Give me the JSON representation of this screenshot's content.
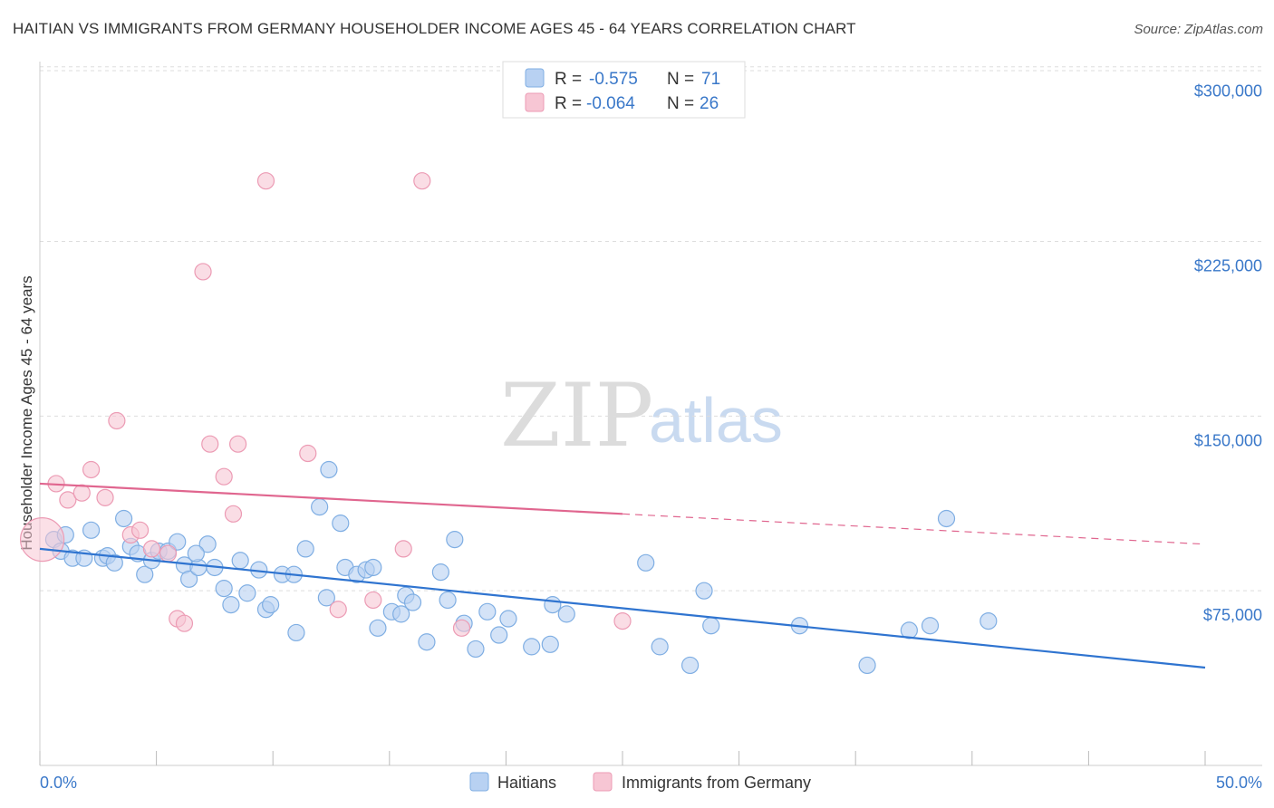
{
  "title": "HAITIAN VS IMMIGRANTS FROM GERMANY HOUSEHOLDER INCOME AGES 45 - 64 YEARS CORRELATION CHART",
  "source": "Source: ZipAtlas.com",
  "watermark": {
    "zip": "ZIP",
    "atlas": "atlas"
  },
  "colors": {
    "blue_fill": "#b8d1f2",
    "blue_stroke": "#7faee3",
    "blue_line": "#2f74d0",
    "pink_fill": "#f7c6d4",
    "pink_stroke": "#ec9bb4",
    "pink_line": "#e0668f",
    "grid": "#dddddd",
    "tick_label": "#3a78c9"
  },
  "legend": {
    "rows": [
      {
        "r_label": "R =",
        "r_value": "-0.575",
        "n_label": "N =",
        "n_value": "71"
      },
      {
        "r_label": "R =",
        "r_value": "-0.064",
        "n_label": "N =",
        "n_value": "26"
      }
    ]
  },
  "chart_data": {
    "type": "scatter",
    "title": "HAITIAN VS IMMIGRANTS FROM GERMANY HOUSEHOLDER INCOME AGES 45 - 64 YEARS CORRELATION CHART",
    "xlabel": "",
    "ylabel": "Householder Income Ages 45 - 64 years",
    "xlim": [
      0,
      50
    ],
    "ylim": [
      0,
      310000
    ],
    "x_tick_labels": [
      "0.0%",
      "50.0%"
    ],
    "y_ticks": [
      75000,
      150000,
      225000,
      300000
    ],
    "y_tick_labels": [
      "$75,000",
      "$150,000",
      "$225,000",
      "$300,000"
    ],
    "grid": true,
    "legend_position": "top-center",
    "series": [
      {
        "name": "Haitians",
        "color": "#7faee3",
        "trend": {
          "x": [
            0,
            50
          ],
          "y": [
            93000,
            42000
          ]
        },
        "points": [
          [
            0.6,
            97000
          ],
          [
            0.9,
            92000
          ],
          [
            1.1,
            99000
          ],
          [
            1.4,
            89000
          ],
          [
            1.9,
            89000
          ],
          [
            2.2,
            101000
          ],
          [
            2.7,
            89000
          ],
          [
            2.9,
            90000
          ],
          [
            3.2,
            87000
          ],
          [
            3.6,
            106000
          ],
          [
            3.9,
            94000
          ],
          [
            4.2,
            91000
          ],
          [
            4.5,
            82000
          ],
          [
            4.8,
            88000
          ],
          [
            5.1,
            92000
          ],
          [
            5.5,
            92000
          ],
          [
            5.9,
            96000
          ],
          [
            6.2,
            86000
          ],
          [
            6.4,
            80000
          ],
          [
            6.8,
            85000
          ],
          [
            7.2,
            95000
          ],
          [
            7.5,
            85000
          ],
          [
            7.9,
            76000
          ],
          [
            8.2,
            69000
          ],
          [
            8.6,
            88000
          ],
          [
            8.9,
            74000
          ],
          [
            9.4,
            84000
          ],
          [
            9.7,
            67000
          ],
          [
            9.9,
            69000
          ],
          [
            10.4,
            82000
          ],
          [
            10.9,
            82000
          ],
          [
            11.0,
            57000
          ],
          [
            11.4,
            93000
          ],
          [
            12.0,
            111000
          ],
          [
            12.3,
            72000
          ],
          [
            12.9,
            104000
          ],
          [
            12.4,
            127000
          ],
          [
            13.1,
            85000
          ],
          [
            13.6,
            82000
          ],
          [
            14.0,
            84000
          ],
          [
            14.3,
            85000
          ],
          [
            14.5,
            59000
          ],
          [
            15.1,
            66000
          ],
          [
            15.5,
            65000
          ],
          [
            15.7,
            73000
          ],
          [
            16.0,
            70000
          ],
          [
            16.6,
            53000
          ],
          [
            17.2,
            83000
          ],
          [
            17.5,
            71000
          ],
          [
            17.8,
            97000
          ],
          [
            18.2,
            61000
          ],
          [
            18.7,
            50000
          ],
          [
            19.2,
            66000
          ],
          [
            19.7,
            56000
          ],
          [
            20.1,
            63000
          ],
          [
            21.1,
            51000
          ],
          [
            21.9,
            52000
          ],
          [
            22.0,
            69000
          ],
          [
            22.6,
            65000
          ],
          [
            26.0,
            87000
          ],
          [
            26.6,
            51000
          ],
          [
            27.9,
            43000
          ],
          [
            28.5,
            75000
          ],
          [
            28.8,
            60000
          ],
          [
            32.6,
            60000
          ],
          [
            35.5,
            43000
          ],
          [
            37.3,
            58000
          ],
          [
            38.2,
            60000
          ],
          [
            38.9,
            106000
          ],
          [
            40.7,
            62000
          ],
          [
            6.7,
            91000
          ]
        ]
      },
      {
        "name": "Immigrants from Germany",
        "color": "#ec9bb4",
        "trend": {
          "x": [
            0,
            25
          ],
          "y": [
            121000,
            108000
          ],
          "dashed_extension": {
            "x": [
              25,
              50
            ],
            "y": [
              108000,
              95000
            ]
          }
        },
        "points": [
          [
            0.1,
            97000
          ],
          [
            0.7,
            121000
          ],
          [
            1.2,
            114000
          ],
          [
            1.8,
            117000
          ],
          [
            2.2,
            127000
          ],
          [
            2.8,
            115000
          ],
          [
            3.3,
            148000
          ],
          [
            3.9,
            99000
          ],
          [
            4.3,
            101000
          ],
          [
            4.8,
            93000
          ],
          [
            5.5,
            91000
          ],
          [
            5.9,
            63000
          ],
          [
            6.2,
            61000
          ],
          [
            7.0,
            212000
          ],
          [
            7.3,
            138000
          ],
          [
            7.9,
            124000
          ],
          [
            8.3,
            108000
          ],
          [
            8.5,
            138000
          ],
          [
            9.7,
            251000
          ],
          [
            11.5,
            134000
          ],
          [
            12.8,
            67000
          ],
          [
            14.3,
            71000
          ],
          [
            15.6,
            93000
          ],
          [
            16.4,
            251000
          ],
          [
            18.1,
            59000
          ],
          [
            25.0,
            62000
          ]
        ]
      }
    ]
  }
}
